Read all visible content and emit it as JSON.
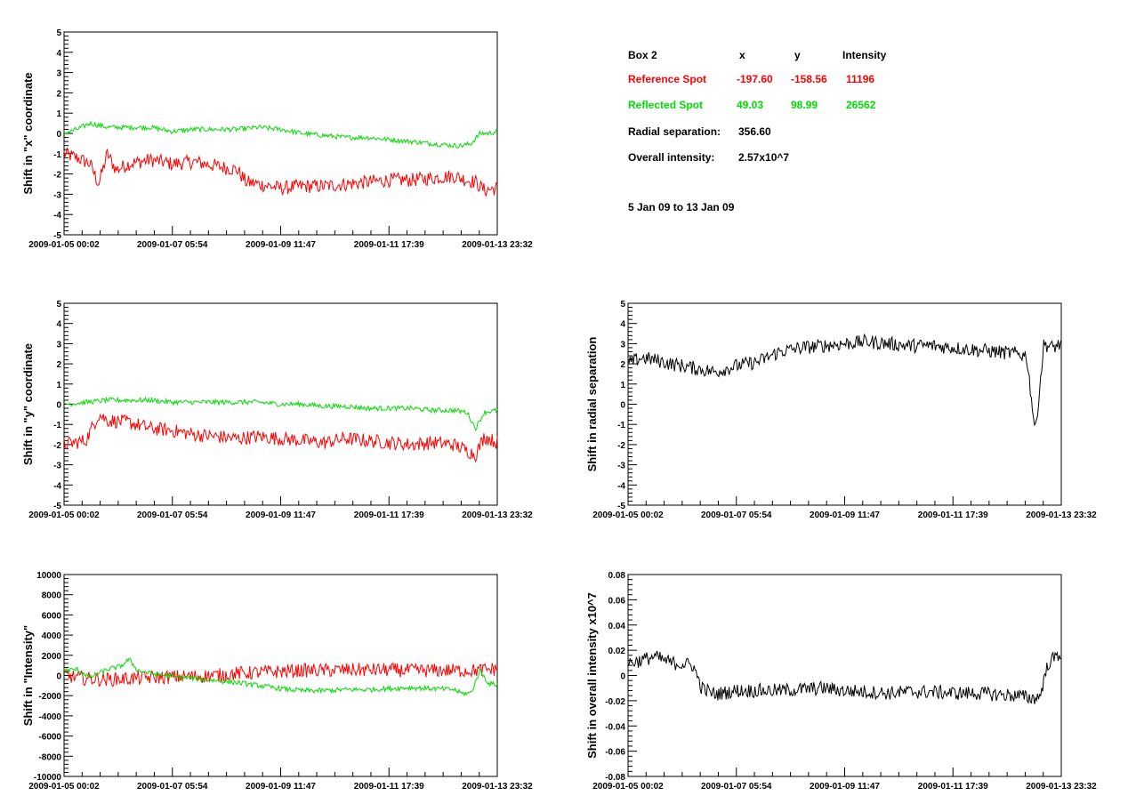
{
  "info": {
    "box_label": "Box 2",
    "headers": {
      "x": "x",
      "y": "y",
      "intensity": "Intensity"
    },
    "reference": {
      "label": "Reference Spot",
      "x": "-197.60",
      "y": "-158.56",
      "intensity": "11196",
      "color": "#ff0000"
    },
    "reflected": {
      "label": "Reflected Spot",
      "x": "49.03",
      "y": "98.99",
      "intensity": "26562",
      "color": "#00dd00"
    },
    "radial": {
      "label": "Radial separation:",
      "value": "356.60"
    },
    "overall": {
      "label": "Overall intensity:",
      "value": "2.57x10^7"
    },
    "date_range": "5 Jan 09 to 13 Jan 09"
  },
  "chart_data": [
    {
      "id": "x-shift",
      "type": "line",
      "ylabel": "Shift in \"x\" coordinate",
      "ylim": [
        -5,
        5
      ],
      "yticks": [
        "-5",
        "-4",
        "-3",
        "-2",
        "-1",
        "0",
        "1",
        "2",
        "3",
        "4",
        "5"
      ],
      "xticks": [
        "2009-01-05 00:02",
        "2009-01-07 05:54",
        "2009-01-09 11:47",
        "2009-01-11 17:39",
        "2009-01-13 23:32"
      ],
      "series": [
        {
          "color": "#ff0000",
          "x": [
            0,
            0.03,
            0.06,
            0.08,
            0.1,
            0.12,
            0.15,
            0.2,
            0.25,
            0.3,
            0.35,
            0.4,
            0.42,
            0.45,
            0.5,
            0.55,
            0.6,
            0.65,
            0.7,
            0.75,
            0.8,
            0.85,
            0.9,
            0.93,
            0.95,
            0.97,
            1
          ],
          "y": [
            -1,
            -1.2,
            -1.5,
            -2.5,
            -1.0,
            -1.8,
            -1.5,
            -1.3,
            -1.5,
            -1.4,
            -1.6,
            -1.8,
            -2.4,
            -2.5,
            -2.7,
            -2.6,
            -2.6,
            -2.5,
            -2.4,
            -2.3,
            -2.3,
            -2.2,
            -2.1,
            -2.3,
            -2.4,
            -2.8,
            -2.7
          ]
        },
        {
          "color": "#00dd00",
          "x": [
            0,
            0.03,
            0.06,
            0.1,
            0.15,
            0.2,
            0.25,
            0.3,
            0.35,
            0.4,
            0.45,
            0.5,
            0.55,
            0.6,
            0.65,
            0.7,
            0.75,
            0.8,
            0.85,
            0.9,
            0.92,
            0.94,
            0.96,
            0.98,
            1
          ],
          "y": [
            0,
            0.2,
            0.5,
            0.3,
            0.3,
            0.3,
            0.1,
            0.2,
            0.2,
            0.2,
            0.3,
            0.2,
            0,
            -0.1,
            -0.2,
            -0.2,
            -0.3,
            -0.4,
            -0.5,
            -0.6,
            -0.6,
            -0.5,
            0,
            0,
            0.1
          ]
        }
      ]
    },
    {
      "id": "y-shift",
      "type": "line",
      "ylabel": "Shift in \"y\" coordinate",
      "ylim": [
        -5,
        5
      ],
      "yticks": [
        "-5",
        "-4",
        "-3",
        "-2",
        "-1",
        "0",
        "1",
        "2",
        "3",
        "4",
        "5"
      ],
      "xticks": [
        "2009-01-05 00:02",
        "2009-01-07 05:54",
        "2009-01-09 11:47",
        "2009-01-11 17:39",
        "2009-01-13 23:32"
      ],
      "series": [
        {
          "color": "#ff0000",
          "x": [
            0,
            0.05,
            0.08,
            0.1,
            0.15,
            0.2,
            0.25,
            0.3,
            0.35,
            0.4,
            0.45,
            0.5,
            0.55,
            0.6,
            0.65,
            0.7,
            0.75,
            0.8,
            0.85,
            0.9,
            0.93,
            0.95,
            0.97,
            1
          ],
          "y": [
            -2,
            -1.8,
            -0.5,
            -0.8,
            -0.9,
            -1.2,
            -1.3,
            -1.5,
            -1.6,
            -1.7,
            -1.6,
            -1.7,
            -1.8,
            -1.9,
            -1.7,
            -1.8,
            -1.9,
            -2,
            -1.9,
            -2,
            -2.3,
            -2.5,
            -1.6,
            -1.9
          ]
        },
        {
          "color": "#00dd00",
          "x": [
            0,
            0.05,
            0.1,
            0.15,
            0.2,
            0.25,
            0.3,
            0.35,
            0.4,
            0.45,
            0.5,
            0.55,
            0.6,
            0.65,
            0.7,
            0.75,
            0.8,
            0.85,
            0.9,
            0.93,
            0.95,
            0.97,
            1
          ],
          "y": [
            0,
            0.1,
            0.2,
            0.2,
            0.2,
            0.1,
            0.1,
            0.1,
            0.1,
            0.1,
            0,
            0,
            -0.1,
            -0.1,
            -0.2,
            -0.2,
            -0.2,
            -0.3,
            -0.3,
            -0.4,
            -1.2,
            -0.4,
            -0.3
          ]
        }
      ]
    },
    {
      "id": "radial-shift",
      "type": "line",
      "ylabel": "Shift in radial separation",
      "ylim": [
        -5,
        5
      ],
      "yticks": [
        "-5",
        "-4",
        "-3",
        "-2",
        "-1",
        "0",
        "1",
        "2",
        "3",
        "4",
        "5"
      ],
      "xticks": [
        "2009-01-05 00:02",
        "2009-01-07 05:54",
        "2009-01-09 11:47",
        "2009-01-11 17:39",
        "2009-01-13 23:32"
      ],
      "series": [
        {
          "color": "#000000",
          "x": [
            0,
            0.03,
            0.06,
            0.1,
            0.15,
            0.2,
            0.25,
            0.3,
            0.35,
            0.4,
            0.45,
            0.5,
            0.55,
            0.6,
            0.65,
            0.7,
            0.75,
            0.8,
            0.85,
            0.9,
            0.92,
            0.94,
            0.96,
            0.98,
            1
          ],
          "y": [
            2,
            2.3,
            2.2,
            2.0,
            1.8,
            1.6,
            1.9,
            2.1,
            2.6,
            2.8,
            2.9,
            3.0,
            3.1,
            3.0,
            2.9,
            2.9,
            2.8,
            2.7,
            2.6,
            2.5,
            2.4,
            -1.4,
            3.0,
            2.8,
            3.0
          ]
        }
      ]
    },
    {
      "id": "intensity-shift",
      "type": "line",
      "ylabel": "Shift in \"Intensity\"",
      "ylim": [
        -10000,
        10000
      ],
      "yticks": [
        "-10000",
        "-8000",
        "-6000",
        "-4000",
        "-2000",
        "0",
        "2000",
        "4000",
        "6000",
        "8000",
        "10000"
      ],
      "xticks": [
        "2009-01-05 00:02",
        "2009-01-07 05:54",
        "2009-01-09 11:47",
        "2009-01-11 17:39",
        "2009-01-13 23:32"
      ],
      "series": [
        {
          "color": "#ff0000",
          "x": [
            0,
            0.05,
            0.1,
            0.15,
            0.2,
            0.25,
            0.3,
            0.35,
            0.4,
            0.45,
            0.5,
            0.55,
            0.6,
            0.65,
            0.7,
            0.75,
            0.8,
            0.85,
            0.9,
            0.95,
            1
          ],
          "y": [
            0,
            -300,
            -400,
            -300,
            -200,
            -150,
            -100,
            0,
            200,
            300,
            400,
            500,
            500,
            550,
            550,
            550,
            500,
            500,
            500,
            500,
            650
          ]
        },
        {
          "color": "#00dd00",
          "x": [
            0,
            0.03,
            0.06,
            0.1,
            0.13,
            0.15,
            0.17,
            0.2,
            0.25,
            0.3,
            0.35,
            0.4,
            0.45,
            0.5,
            0.55,
            0.6,
            0.65,
            0.7,
            0.75,
            0.8,
            0.85,
            0.9,
            0.92,
            0.94,
            0.96,
            0.98,
            1
          ],
          "y": [
            500,
            600,
            -200,
            600,
            900,
            1600,
            500,
            200,
            -100,
            -300,
            -500,
            -700,
            -1000,
            -1300,
            -1500,
            -1500,
            -1400,
            -1400,
            -1300,
            -1200,
            -1300,
            -1400,
            -1800,
            -1700,
            500,
            -800,
            -900
          ]
        }
      ]
    },
    {
      "id": "overall-intensity-shift",
      "type": "line",
      "ylabel": "Shift in overall intensity x10^7",
      "ylim": [
        -0.08,
        0.08
      ],
      "yticks": [
        "-0.08",
        "-0.06",
        "-0.04",
        "-0.02",
        "0",
        "0.02",
        "0.04",
        "0.06",
        "0.08"
      ],
      "xticks": [
        "2009-01-05 00:02",
        "2009-01-07 05:54",
        "2009-01-09 11:47",
        "2009-01-11 17:39",
        "2009-01-13 23:32"
      ],
      "series": [
        {
          "color": "#000000",
          "x": [
            0,
            0.03,
            0.06,
            0.1,
            0.13,
            0.15,
            0.17,
            0.2,
            0.25,
            0.3,
            0.35,
            0.4,
            0.45,
            0.5,
            0.55,
            0.6,
            0.65,
            0.7,
            0.75,
            0.8,
            0.85,
            0.9,
            0.93,
            0.95,
            0.97,
            1
          ],
          "y": [
            0.01,
            0.012,
            0.015,
            0.01,
            0.009,
            0.008,
            -0.01,
            -0.015,
            -0.012,
            -0.012,
            -0.012,
            -0.011,
            -0.01,
            -0.012,
            -0.013,
            -0.014,
            -0.013,
            -0.013,
            -0.014,
            -0.014,
            -0.015,
            -0.016,
            -0.018,
            -0.017,
            0.01,
            0.018
          ]
        }
      ]
    }
  ]
}
